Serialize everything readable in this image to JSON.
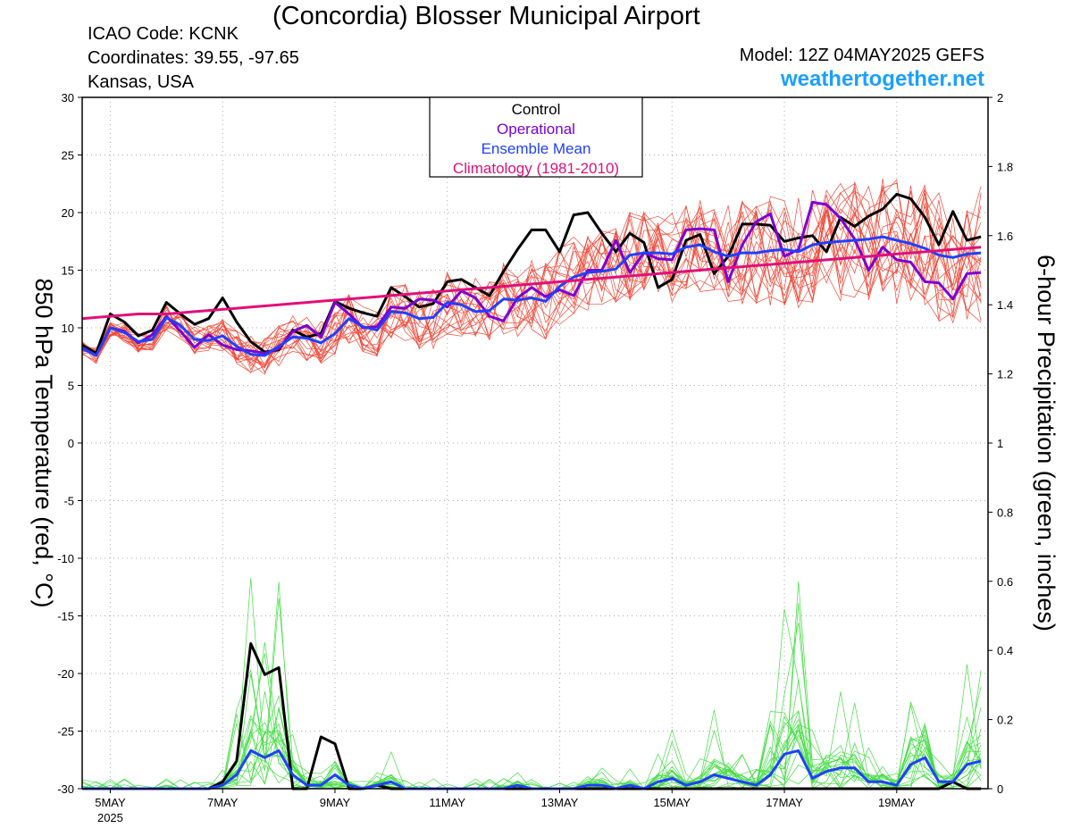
{
  "header": {
    "title": "(Concordia) Blosser Municipal Airport",
    "icao": "ICAO Code: KCNK",
    "coordinates": "Coordinates: 39.55, -97.65",
    "location": "Kansas, USA",
    "model": "Model: 12Z 04MAY2025 GEFS",
    "site": "weathertogether.net"
  },
  "colors": {
    "control": "#000000",
    "operational": "#7b00d6",
    "mean": "#2040ff",
    "climatology": "#e0107a",
    "members_temp": "#f04a3a",
    "members_precip": "#44dd44",
    "site": "#1aa0ff"
  },
  "chart_data": {
    "type": "line",
    "ylabel": "850 hPa Temperature (red, °C)",
    "y2label": "6-hour Precipitation (green, inches)",
    "ylim": [
      -30,
      30
    ],
    "y2lim": [
      0,
      2
    ],
    "yticks": [
      30,
      25,
      20,
      15,
      10,
      5,
      0,
      -5,
      -10,
      -15,
      -20,
      -25,
      -30
    ],
    "y2ticks": [
      2,
      1.8,
      1.6,
      1.4,
      1.2,
      1,
      0.8,
      0.6,
      0.4,
      0.2,
      0
    ],
    "xlim": [
      0,
      64.5
    ],
    "x_step_hours": 6,
    "x_start": "12Z 04MAY2025",
    "x_ticks": [
      {
        "x": 2,
        "label": "5MAY"
      },
      {
        "x": 10,
        "label": "7MAY"
      },
      {
        "x": 18,
        "label": "9MAY"
      },
      {
        "x": 26,
        "label": "11MAY"
      },
      {
        "x": 34,
        "label": "13MAY"
      },
      {
        "x": 42,
        "label": "15MAY"
      },
      {
        "x": 50,
        "label": "17MAY"
      },
      {
        "x": 58,
        "label": "19MAY"
      }
    ],
    "x_year_label": "2025",
    "grid": true,
    "legend": {
      "position": "top-center",
      "entries": [
        {
          "label": "Control",
          "color": "#000000"
        },
        {
          "label": "Operational",
          "color": "#7b00d6"
        },
        {
          "label": "Ensemble Mean",
          "color": "#2040ff"
        },
        {
          "label": "Climatology (1981-2010)",
          "color": "#e0107a"
        }
      ]
    },
    "series": [
      {
        "name": "Control",
        "axis": "left",
        "values": [
          8.5,
          7.8,
          11.2,
          10.5,
          9.3,
          9.8,
          12.2,
          11.2,
          10.3,
          10.8,
          12.6,
          10.5,
          8.8,
          7.9,
          8.1,
          9.8,
          9.2,
          9.5,
          12.3,
          11.7,
          11.3,
          11.0,
          13.5,
          12.7,
          11.8,
          12.1,
          14.0,
          14.2,
          13.5,
          12.8,
          14.9,
          16.8,
          18.5,
          18.5,
          16.6,
          19.8,
          20.0,
          18.2,
          16.6,
          18.2,
          17.4,
          13.5,
          14.2,
          17.6,
          18.1,
          14.7,
          16.2,
          19.0,
          19.0,
          18.9,
          17.5,
          17.8,
          18.0,
          16.6,
          19.6,
          18.8,
          19.7,
          20.3,
          21.6,
          21.2,
          19.6,
          17.2,
          20.1,
          17.6,
          17.9
        ]
      },
      {
        "name": "Operational",
        "axis": "left",
        "values": [
          8.3,
          7.6,
          10.0,
          9.7,
          8.7,
          9.4,
          11.0,
          9.7,
          8.3,
          9.4,
          8.5,
          8.1,
          8.0,
          7.8,
          8.2,
          9.7,
          10.2,
          9.2,
          12.2,
          11.2,
          10.0,
          10.1,
          11.8,
          11.7,
          12.5,
          12.4,
          11.8,
          13.2,
          12.6,
          11.0,
          10.6,
          12.6,
          13.5,
          12.7,
          13.3,
          12.8,
          15.0,
          15.0,
          17.6,
          14.8,
          16.5,
          16.0,
          15.9,
          18.5,
          18.6,
          18.5,
          14.0,
          17.2,
          19.2,
          19.9,
          16.2,
          16.8,
          20.9,
          20.7,
          19.5,
          17.7,
          15.0,
          17.0,
          15.9,
          15.7,
          14.0,
          13.9,
          12.5,
          14.7,
          14.8
        ]
      },
      {
        "name": "Ensemble Mean",
        "axis": "left",
        "values": [
          8.2,
          7.6,
          10.0,
          9.6,
          8.8,
          9.0,
          10.9,
          10.2,
          9.0,
          8.9,
          9.3,
          8.4,
          7.7,
          7.6,
          8.4,
          9.2,
          9.1,
          8.7,
          9.5,
          10.8,
          10.1,
          9.8,
          11.4,
          11.3,
          10.8,
          10.9,
          12.2,
          12.0,
          11.4,
          11.5,
          12.5,
          12.4,
          12.6,
          12.3,
          13.6,
          14.4,
          14.8,
          14.9,
          15.1,
          16.3,
          16.5,
          16.5,
          16.4,
          17.0,
          17.2,
          16.6,
          16.2,
          16.5,
          16.5,
          16.7,
          16.8,
          16.6,
          17.2,
          17.4,
          17.5,
          17.6,
          17.7,
          17.9,
          17.6,
          17.3,
          16.9,
          16.3,
          16.1,
          16.4,
          16.5
        ]
      },
      {
        "name": "Climatology (1981-2010)",
        "axis": "left",
        "values": [
          10.8,
          10.9,
          11.0,
          11.1,
          11.2,
          11.2,
          11.2,
          11.3,
          11.4,
          11.5,
          11.6,
          11.7,
          11.8,
          11.9,
          12.0,
          12.1,
          12.2,
          12.3,
          12.4,
          12.5,
          12.6,
          12.7,
          12.8,
          12.9,
          13.0,
          13.1,
          13.2,
          13.3,
          13.4,
          13.5,
          13.6,
          13.7,
          13.8,
          13.9,
          14.0,
          14.1,
          14.2,
          14.3,
          14.4,
          14.5,
          14.6,
          14.7,
          14.8,
          14.9,
          15.0,
          15.1,
          15.2,
          15.3,
          15.4,
          15.5,
          15.6,
          15.7,
          15.8,
          15.9,
          16.0,
          16.1,
          16.2,
          16.3,
          16.4,
          16.5,
          16.6,
          16.7,
          16.8,
          16.9,
          17.0
        ]
      },
      {
        "name": "Control",
        "axis": "right",
        "values": [
          0,
          0,
          0,
          0,
          0,
          0,
          0,
          0,
          0,
          0,
          0.02,
          0.08,
          0.42,
          0.33,
          0.35,
          0,
          0,
          0.15,
          0.13,
          0,
          0,
          0.01,
          0,
          0,
          0,
          0,
          0,
          0,
          0,
          0,
          0,
          0,
          0,
          0,
          0,
          0,
          0,
          0,
          0,
          0,
          0,
          0,
          0,
          0,
          0,
          0,
          0,
          0,
          0,
          0,
          0,
          0,
          0,
          0,
          0,
          0,
          0,
          0,
          0,
          0,
          0,
          0,
          0.02,
          0,
          0
        ]
      },
      {
        "name": "Ensemble Mean",
        "axis": "right",
        "values": [
          0,
          0,
          0,
          0,
          0,
          0,
          0,
          0,
          0,
          0,
          0.01,
          0.04,
          0.11,
          0.09,
          0.11,
          0.04,
          0.01,
          0.01,
          0.04,
          0.01,
          0,
          0.01,
          0.02,
          0,
          0,
          0,
          0,
          0,
          0,
          0,
          0,
          0.01,
          0,
          0,
          0,
          0,
          0.01,
          0.01,
          0,
          0.01,
          0,
          0.02,
          0.03,
          0.01,
          0.02,
          0.04,
          0.03,
          0.02,
          0.01,
          0.04,
          0.1,
          0.11,
          0.03,
          0.05,
          0.06,
          0.06,
          0.02,
          0.02,
          0.01,
          0.07,
          0.09,
          0.02,
          0.02,
          0.07,
          0.08
        ]
      }
    ]
  }
}
